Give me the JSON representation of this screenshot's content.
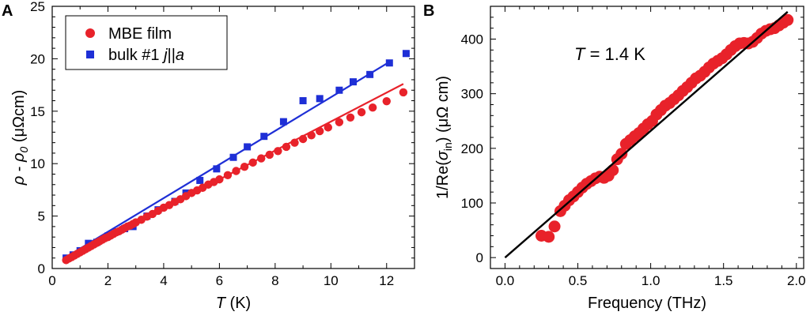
{
  "panels": {
    "a_label": "A",
    "b_label": "B"
  },
  "colors": {
    "red": "#e8222a",
    "blue": "#1e2fd6",
    "black": "#000000"
  },
  "chart_data": [
    {
      "type": "scatter",
      "panel": "A",
      "xlabel_italic": "T",
      "xlabel_unit": " (K)",
      "ylabel": "ρ - ρ0 (μΩcm)",
      "ylabel_parts": [
        "ρ",
        " - ",
        "ρ",
        "0",
        " (μΩcm)"
      ],
      "xlim": [
        0,
        13
      ],
      "ylim": [
        0,
        25
      ],
      "xticks": [
        0,
        2,
        4,
        6,
        8,
        10,
        12
      ],
      "yticks": [
        0,
        5,
        10,
        15,
        20,
        25
      ],
      "legend": {
        "placement": "top-left",
        "entries": [
          {
            "label": "MBE film",
            "italic_part": "",
            "marker": "circle"
          },
          {
            "label": "bulk #1 ",
            "italic_part": "j",
            "rest": "||",
            "italic_part2": "a",
            "marker": "square"
          }
        ]
      },
      "series": [
        {
          "name": "MBE film",
          "marker": "circle",
          "x": [
            0.5,
            0.6,
            0.7,
            0.8,
            0.9,
            1.0,
            1.1,
            1.2,
            1.3,
            1.4,
            1.5,
            1.6,
            1.7,
            1.8,
            1.9,
            2.0,
            2.1,
            2.2,
            2.3,
            2.4,
            2.5,
            2.6,
            2.7,
            2.8,
            2.9,
            3.0,
            3.2,
            3.4,
            3.6,
            3.8,
            4.0,
            4.2,
            4.4,
            4.6,
            4.8,
            5.0,
            5.2,
            5.4,
            5.6,
            5.8,
            6.0,
            6.3,
            6.6,
            6.9,
            7.2,
            7.5,
            7.8,
            8.1,
            8.4,
            8.7,
            9.0,
            9.3,
            9.6,
            9.9,
            10.3,
            10.7,
            11.1,
            11.5,
            12.0,
            12.6
          ],
          "y": [
            0.8,
            0.95,
            1.1,
            1.25,
            1.4,
            1.55,
            1.7,
            1.85,
            2.0,
            2.15,
            2.3,
            2.45,
            2.6,
            2.75,
            2.9,
            3.0,
            3.15,
            3.3,
            3.45,
            3.55,
            3.7,
            3.85,
            4.0,
            4.1,
            4.25,
            4.4,
            4.65,
            4.95,
            5.2,
            5.5,
            5.8,
            6.05,
            6.35,
            6.6,
            6.9,
            7.2,
            7.45,
            7.7,
            8.0,
            8.25,
            8.5,
            8.9,
            9.3,
            9.7,
            10.1,
            10.5,
            10.85,
            11.2,
            11.6,
            12.0,
            12.35,
            12.7,
            13.1,
            13.45,
            13.95,
            14.4,
            14.9,
            15.35,
            15.95,
            16.8
          ]
        },
        {
          "name": "bulk #1 j||a",
          "marker": "square",
          "x": [
            0.5,
            0.75,
            1.0,
            1.3,
            1.6,
            2.0,
            2.3,
            2.6,
            2.9,
            3.4,
            3.8,
            4.4,
            4.8,
            5.3,
            5.9,
            6.5,
            7.0,
            7.6,
            8.3,
            9.0,
            9.6,
            10.3,
            10.8,
            11.4,
            12.1,
            12.7
          ],
          "y": [
            1.0,
            1.3,
            1.7,
            2.4,
            2.5,
            3.1,
            3.5,
            3.8,
            4.0,
            5.0,
            5.6,
            6.4,
            7.2,
            8.4,
            9.5,
            10.6,
            11.6,
            12.6,
            14.0,
            16.0,
            16.2,
            17.0,
            17.8,
            18.5,
            19.6,
            20.5
          ]
        }
      ],
      "fits": [
        {
          "name": "MBE film fit",
          "x": [
            0.5,
            12.6
          ],
          "y": [
            0.9,
            17.6
          ]
        },
        {
          "name": "bulk fit",
          "x": [
            0.5,
            12.1
          ],
          "y": [
            1.1,
            19.7
          ]
        }
      ]
    },
    {
      "type": "scatter",
      "panel": "B",
      "annotation_italic": "T",
      "annotation_rest": " = 1.4 K",
      "xlabel": "Frequency (THz)",
      "ylabel_parts": [
        "1/Re(",
        "σ",
        "in",
        ") (μΩ cm)"
      ],
      "xlim": [
        -0.1,
        2.05
      ],
      "ylim": [
        -20,
        460
      ],
      "xticks": [
        "0.0",
        "0.5",
        "1.0",
        "1.5",
        "2.0"
      ],
      "xtick_values": [
        0,
        0.5,
        1.0,
        1.5,
        2.0
      ],
      "yticks": [
        0,
        100,
        200,
        300,
        400
      ],
      "series": [
        {
          "name": "1/Re(sigma_in)",
          "marker": "circle",
          "x": [
            0.25,
            0.3,
            0.34,
            0.38,
            0.41,
            0.44,
            0.47,
            0.5,
            0.53,
            0.56,
            0.59,
            0.62,
            0.65,
            0.68,
            0.71,
            0.74,
            0.77,
            0.8,
            0.83,
            0.86,
            0.89,
            0.92,
            0.95,
            0.98,
            1.01,
            1.04,
            1.07,
            1.1,
            1.13,
            1.16,
            1.19,
            1.22,
            1.25,
            1.28,
            1.31,
            1.34,
            1.37,
            1.4,
            1.43,
            1.46,
            1.49,
            1.52,
            1.55,
            1.58,
            1.61,
            1.64,
            1.67,
            1.7,
            1.73,
            1.76,
            1.79,
            1.82,
            1.85,
            1.88,
            1.91,
            1.94
          ],
          "y": [
            40,
            38,
            57,
            85,
            95,
            105,
            112,
            120,
            128,
            135,
            140,
            145,
            148,
            146,
            150,
            160,
            180,
            190,
            208,
            215,
            222,
            228,
            236,
            244,
            250,
            262,
            270,
            278,
            283,
            290,
            297,
            305,
            312,
            320,
            328,
            333,
            340,
            348,
            355,
            360,
            365,
            372,
            380,
            387,
            392,
            393,
            392,
            395,
            402,
            410,
            415,
            418,
            420,
            425,
            430,
            435
          ]
        }
      ],
      "fits": [
        {
          "name": "linear fit",
          "x": [
            0.0,
            1.94
          ],
          "y": [
            0,
            450
          ]
        }
      ]
    }
  ]
}
